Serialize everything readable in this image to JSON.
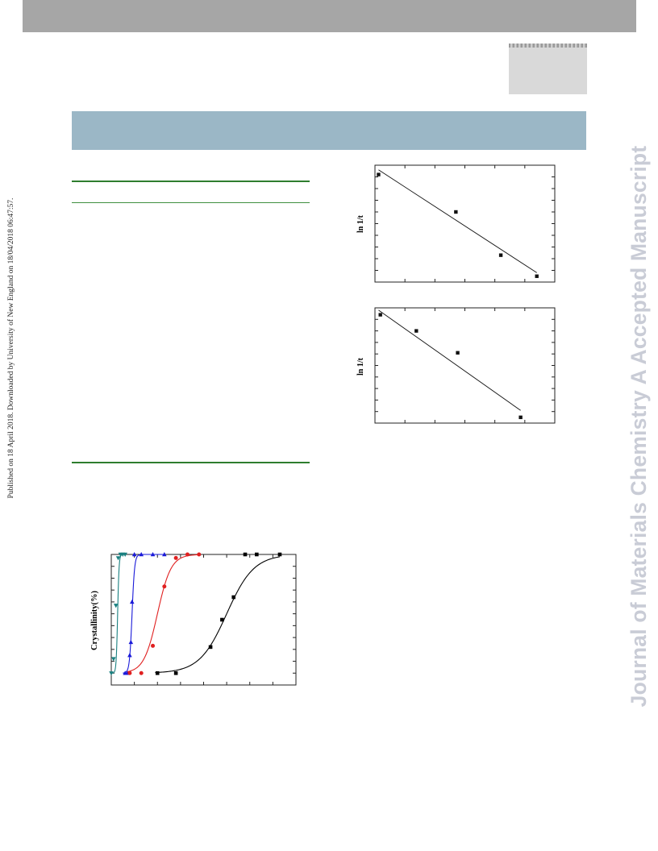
{
  "sidebar": {
    "published": "Published on 18 April 2018. Downloaded by University of New England on 18/04/2018 06:47:57."
  },
  "watermark": {
    "text": "Journal of Materials Chemistry A Accepted Manuscript"
  },
  "colors": {
    "title_band": "#9bb7c6",
    "table_rule": "#2e7d2e",
    "watermark": "#c9ccd6"
  },
  "chart_data": [
    {
      "type": "scatter",
      "title": "",
      "xlabel": "",
      "ylabel": "ln 1/t",
      "xlim": [
        0,
        10
      ],
      "ylim": [
        0,
        10
      ],
      "points": [
        {
          "x": 0.2,
          "y": 9.2
        },
        {
          "x": 4.5,
          "y": 6.0
        },
        {
          "x": 7.0,
          "y": 2.3
        },
        {
          "x": 9.0,
          "y": 0.5
        }
      ],
      "fit_line": [
        {
          "x": 0.2,
          "y": 9.6
        },
        {
          "x": 9.0,
          "y": 0.8
        }
      ]
    },
    {
      "type": "scatter",
      "title": "",
      "xlabel": "",
      "ylabel": "ln 1/t",
      "xlim": [
        0,
        10
      ],
      "ylim": [
        0,
        10
      ],
      "points": [
        {
          "x": 0.3,
          "y": 9.4
        },
        {
          "x": 2.3,
          "y": 8.0
        },
        {
          "x": 4.6,
          "y": 6.1
        },
        {
          "x": 8.1,
          "y": 0.5
        }
      ],
      "fit_line": [
        {
          "x": 0.2,
          "y": 9.8
        },
        {
          "x": 8.1,
          "y": 1.1
        }
      ]
    },
    {
      "type": "line",
      "title": "",
      "xlabel": "",
      "ylabel": "Crystallinity(%)",
      "xlim": [
        0,
        160
      ],
      "ylim": [
        -10,
        100
      ],
      "series": [
        {
          "color": "#1a8080",
          "marker": "triangle-down",
          "x": [
            0,
            2,
            4,
            6,
            8,
            10,
            12
          ],
          "y": [
            0,
            12,
            57,
            97,
            100,
            100,
            100
          ],
          "curve": {
            "mid": 5.5,
            "k": 1.6
          }
        },
        {
          "color": "#1a1ad9",
          "marker": "triangle-up",
          "x": [
            12,
            14,
            16,
            17,
            18,
            20,
            26,
            36,
            46
          ],
          "y": [
            0,
            0,
            15,
            26,
            60,
            100,
            100,
            100,
            100
          ],
          "curve": {
            "mid": 18,
            "k": 0.9
          }
        },
        {
          "color": "#e02020",
          "marker": "circle",
          "x": [
            16,
            26,
            36,
            46,
            56,
            66,
            76
          ],
          "y": [
            0,
            0,
            23,
            73,
            97,
            100,
            100
          ],
          "curve": {
            "mid": 40,
            "k": 0.17
          }
        },
        {
          "color": "#000000",
          "marker": "square",
          "x": [
            40,
            56,
            86,
            96,
            106,
            116,
            126,
            146
          ],
          "y": [
            0,
            0,
            22,
            45,
            64,
            100,
            100,
            100
          ],
          "curve": {
            "mid": 100,
            "k": 0.085
          }
        }
      ]
    }
  ]
}
